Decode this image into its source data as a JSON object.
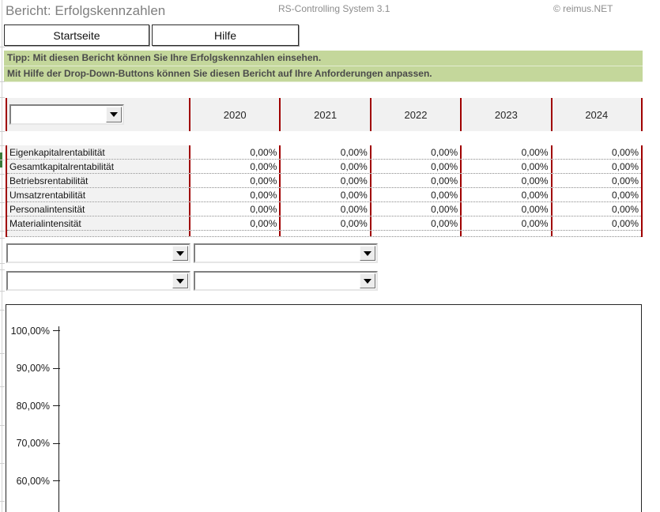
{
  "header": {
    "title": "Bericht: Erfolgskennzahlen",
    "app_name": "RS-Controlling System 3.1",
    "copyright": "© reimus.NET"
  },
  "nav": {
    "home_label": "Startseite",
    "help_label": "Hilfe"
  },
  "tip": {
    "line1": "Tipp: Mit diesen Bericht können Sie Ihre Erfolgskennzahlen einsehen.",
    "line2": "Mit Hilfe der Drop-Down-Buttons können Sie diesen Bericht auf Ihre Anforderungen anpassen."
  },
  "table": {
    "years": [
      "2020",
      "2021",
      "2022",
      "2023",
      "2024"
    ],
    "rows": [
      {
        "label": "Eigenkapitalrentabilität",
        "values": [
          "0,00%",
          "0,00%",
          "0,00%",
          "0,00%",
          "0,00%"
        ]
      },
      {
        "label": "Gesamtkapitalrentabilität",
        "values": [
          "0,00%",
          "0,00%",
          "0,00%",
          "0,00%",
          "0,00%"
        ]
      },
      {
        "label": "Betriebsrentabilität",
        "values": [
          "0,00%",
          "0,00%",
          "0,00%",
          "0,00%",
          "0,00%"
        ]
      },
      {
        "label": "Umsatzrentabilität",
        "values": [
          "0,00%",
          "0,00%",
          "0,00%",
          "0,00%",
          "0,00%"
        ]
      },
      {
        "label": "Personalintensität",
        "values": [
          "0,00%",
          "0,00%",
          "0,00%",
          "0,00%",
          "0,00%"
        ]
      },
      {
        "label": "Materialintensität",
        "values": [
          "0,00%",
          "0,00%",
          "0,00%",
          "0,00%",
          "0,00%"
        ]
      }
    ]
  },
  "filters": {
    "metric_selector_value": "",
    "dropdown1_value": "",
    "dropdown2_value": "",
    "dropdown3_value": "",
    "dropdown4_value": ""
  },
  "chart_data": {
    "type": "bar",
    "title": "",
    "y_tick_labels": [
      "100,00%",
      "90,00%",
      "80,00%",
      "70,00%",
      "60,00%"
    ],
    "ylim_visible": [
      60,
      100
    ],
    "series": [],
    "note": "empty chart - all metric values are 0,00%"
  },
  "colors": {
    "accent_red": "#a00000",
    "banner_green": "#c4d79b",
    "cell_gray": "#f2f2f2",
    "title_gray": "#7f7f7f"
  }
}
